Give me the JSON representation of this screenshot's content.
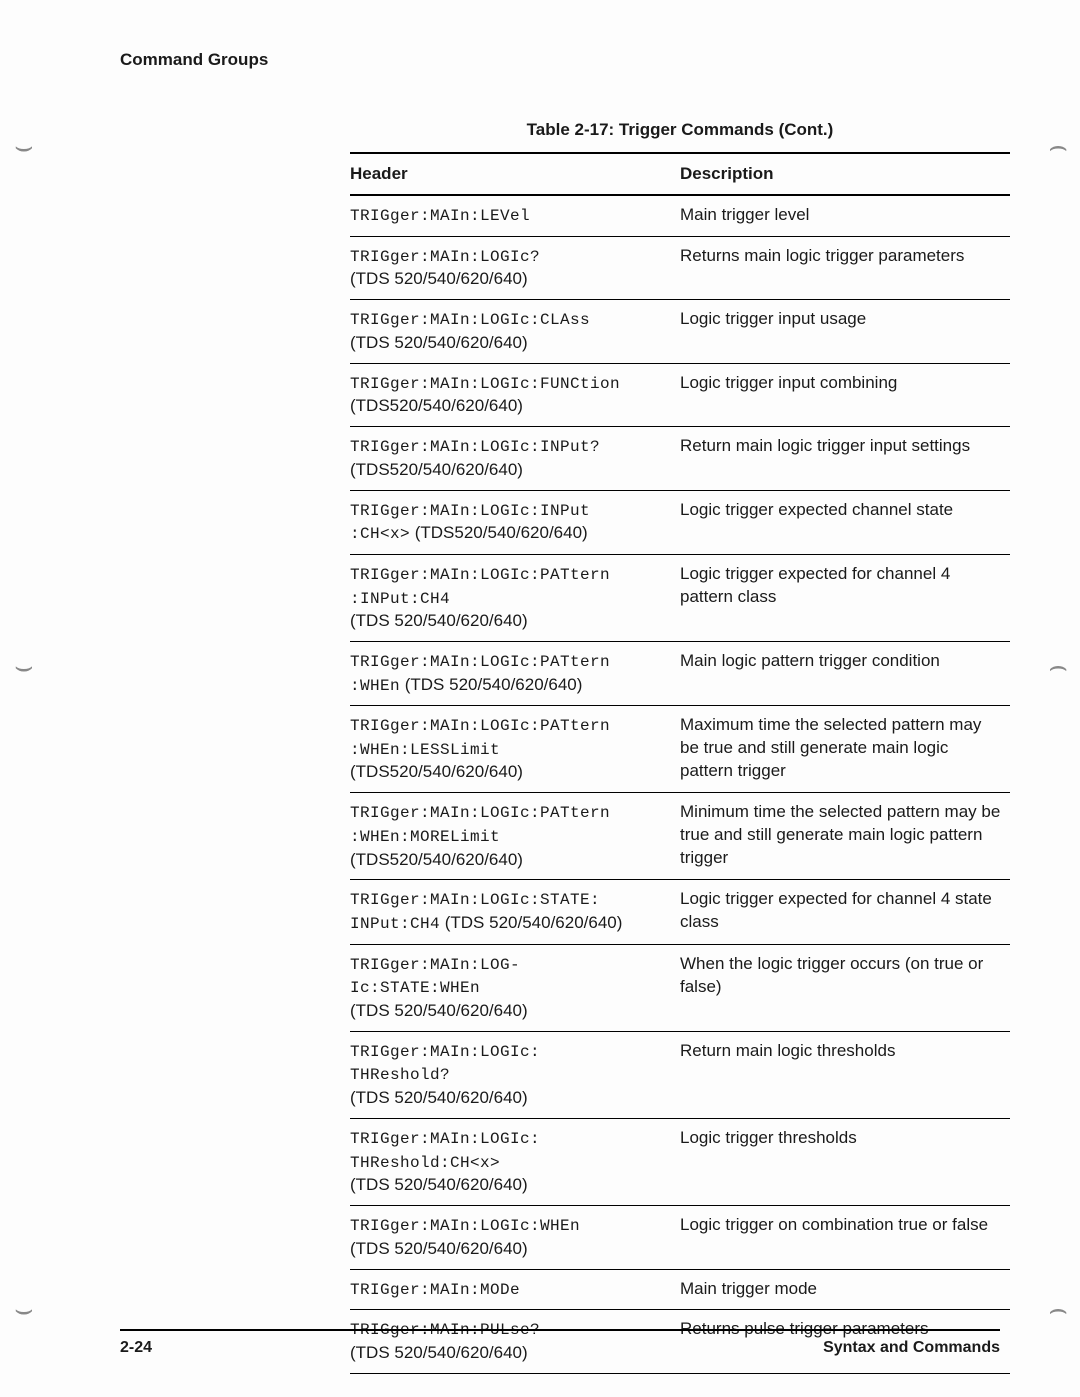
{
  "page": {
    "section": "Command Groups",
    "caption": "Table 2-17:  Trigger Commands (Cont.)",
    "page_number": "2-24",
    "book_section": "Syntax and Commands"
  },
  "table": {
    "columns": {
      "header": "Header",
      "description": "Description"
    },
    "rows": [
      {
        "cmd": "TRIGger:MAIn:LEVel",
        "note": "",
        "desc": "Main trigger level"
      },
      {
        "cmd": "TRIGger:MAIn:LOGIc?",
        "note": "(TDS 520/540/620/640)",
        "desc": "Returns main logic trigger parameters"
      },
      {
        "cmd": "TRIGger:MAIn:LOGIc:CLAss",
        "note": "(TDS 520/540/620/640)",
        "desc": "Logic trigger input usage"
      },
      {
        "cmd": "TRIGger:MAIn:LOGIc:FUNCtion",
        "note": "(TDS520/540/620/640)",
        "desc": "Logic trigger input combining"
      },
      {
        "cmd": "TRIGger:MAIn:LOGIc:INPut?",
        "note": "(TDS520/540/620/640)",
        "desc": "Return main logic trigger input settings"
      },
      {
        "cmd": "TRIGger:MAIn:LOGIc:INPut\n:CH<x>",
        "note_inline": " (TDS520/540/620/640)",
        "desc": "Logic trigger expected channel state"
      },
      {
        "cmd": "TRIGger:MAIn:LOGIc:PATtern\n:INPut:CH4",
        "note": "(TDS 520/540/620/640)",
        "desc": "Logic trigger expected for channel 4 pattern class"
      },
      {
        "cmd": "TRIGger:MAIn:LOGIc:PATtern\n:WHEn",
        "note_inline": " (TDS 520/540/620/640)",
        "desc": "Main logic pattern trigger condition"
      },
      {
        "cmd": "TRIGger:MAIn:LOGIc:PATtern\n:WHEn:LESSLimit",
        "note": "(TDS520/540/620/640)",
        "desc": "Maximum time the selected pattern may be true and still generate main logic pattern trigger"
      },
      {
        "cmd": "TRIGger:MAIn:LOGIc:PATtern\n:WHEn:MORELimit",
        "note": "(TDS520/540/620/640)",
        "desc": "Minimum time the selected pattern may be true and still generate main logic pattern trigger"
      },
      {
        "cmd": "TRIGger:MAIn:LOGIc:STATE:\nINPut:CH4",
        "note_inline": " (TDS 520/540/620/640)",
        "desc": "Logic trigger expected for channel 4 state class"
      },
      {
        "cmd": "TRIGger:MAIn:LOG-\nIc:STATE:WHEn",
        "note": "(TDS 520/540/620/640)",
        "desc": "When the logic trigger occurs (on true or false)"
      },
      {
        "cmd": "TRIGger:MAIn:LOGIc:\nTHReshold?",
        "note": "(TDS 520/540/620/640)",
        "desc": "Return main logic thresholds"
      },
      {
        "cmd": "TRIGger:MAIn:LOGIc:\nTHReshold:CH<x>",
        "note": "(TDS 520/540/620/640)",
        "desc": "Logic trigger thresholds"
      },
      {
        "cmd": "TRIGger:MAIn:LOGIc:WHEn",
        "note": "(TDS 520/540/620/640)",
        "desc": "Logic trigger on combination true or false"
      },
      {
        "cmd": "TRIGger:MAIn:MODe",
        "note": "",
        "desc": "Main trigger mode"
      },
      {
        "cmd": "TRIGger:MAIn:PULse?",
        "note": "(TDS 520/540/620/640)",
        "desc": "Returns pulse trigger parameters"
      }
    ]
  },
  "style": {
    "font_body": "Arial",
    "font_mono": "Courier New",
    "text_color": "#1a1a1a",
    "bg_color": "#fdfdfd",
    "rule_thick": "2.5px",
    "rule_thin": "1px"
  }
}
